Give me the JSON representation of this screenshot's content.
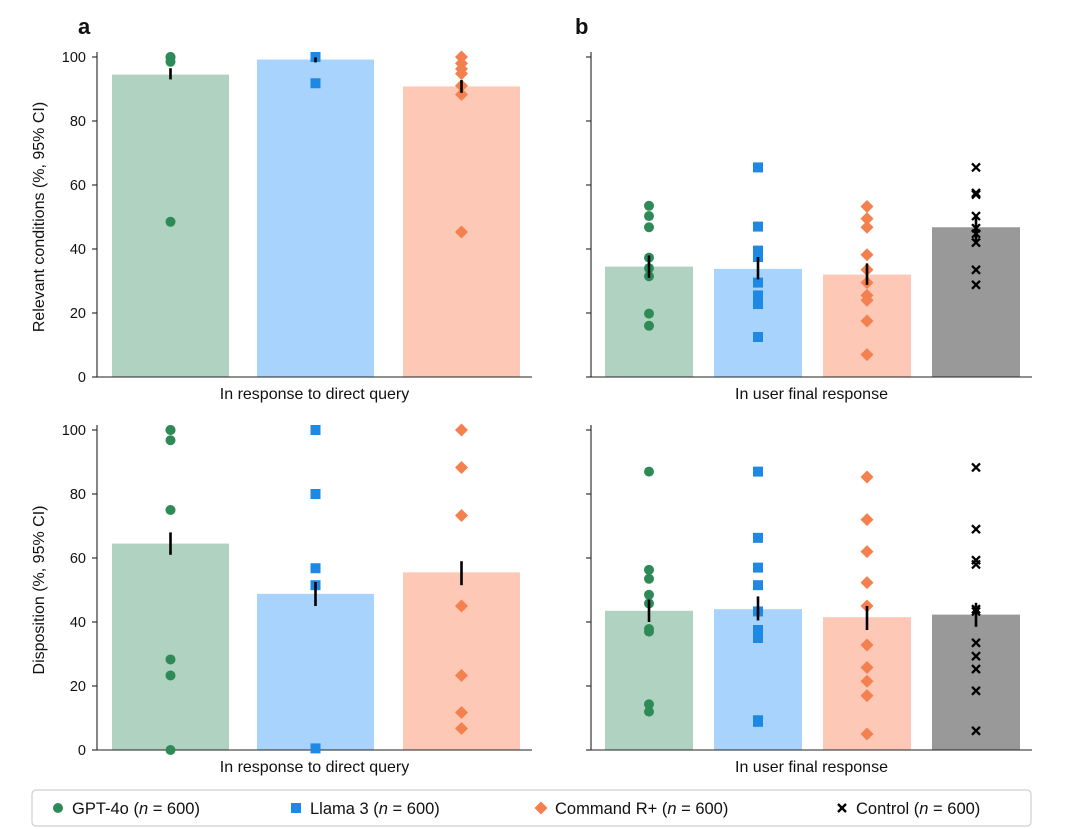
{
  "chart_data": [
    {
      "type": "bar",
      "id": "a-top",
      "panel_letter": "a",
      "xlabel": "In response to direct query",
      "ylabel": "Relevant conditions (%, 95% CI)",
      "ylim": [
        0,
        100
      ],
      "yticks": [
        "0",
        "20",
        "40",
        "60",
        "80",
        "100"
      ],
      "bars": [
        {
          "name": "GPT-4o",
          "value": 94.5,
          "ci": [
            93,
            96.5
          ],
          "points": [
            100,
            100,
            98.5,
            48.5
          ]
        },
        {
          "name": "Llama 3",
          "value": 99.2,
          "ci": [
            98.3,
            99.9
          ],
          "points": [
            100,
            100,
            91.8
          ]
        },
        {
          "name": "Command R+",
          "value": 90.8,
          "ci": [
            88.8,
            92.8
          ],
          "points": [
            100,
            98,
            96.3,
            94.8,
            91,
            88.3,
            45.3
          ]
        }
      ]
    },
    {
      "type": "bar",
      "id": "b-top",
      "panel_letter": "b",
      "xlabel": "In user final response",
      "ylabel": "",
      "ylim": [
        0,
        100
      ],
      "yticks": [
        "0",
        "20",
        "40",
        "60",
        "80",
        "100"
      ],
      "bars": [
        {
          "name": "GPT-4o",
          "value": 34.5,
          "ci": [
            31,
            38
          ],
          "points": [
            53.5,
            50.3,
            46.8,
            37.3,
            34,
            31.5,
            19.8,
            16
          ]
        },
        {
          "name": "Llama 3",
          "value": 33.8,
          "ci": [
            30.5,
            37.5
          ],
          "points": [
            65.5,
            47,
            39.5,
            37.5,
            29.5,
            25.5,
            22.8,
            12.5
          ]
        },
        {
          "name": "Command R+",
          "value": 32,
          "ci": [
            28.8,
            35.5
          ],
          "points": [
            53.3,
            49.5,
            46.8,
            38.2,
            33.5,
            29.5,
            25.5,
            24,
            17.5,
            7
          ]
        },
        {
          "name": "Control",
          "value": 46.8,
          "ci": [
            42.5,
            50.5
          ],
          "points": [
            65.5,
            57.5,
            57,
            50.3,
            46.5,
            44.8,
            42,
            33.5,
            28.8
          ]
        }
      ]
    },
    {
      "type": "bar",
      "id": "a-bottom",
      "panel_letter": "",
      "xlabel": "In response to direct query",
      "ylabel": "Disposition (%, 95% CI)",
      "ylim": [
        0,
        100
      ],
      "yticks": [
        "0",
        "20",
        "40",
        "60",
        "80",
        "100"
      ],
      "bars": [
        {
          "name": "GPT-4o",
          "value": 64.5,
          "ci": [
            61,
            68
          ],
          "points": [
            100,
            100,
            96.8,
            75,
            28.3,
            23.3,
            0
          ]
        },
        {
          "name": "Llama 3",
          "value": 48.8,
          "ci": [
            45,
            52.5
          ],
          "points": [
            100,
            100,
            80,
            56.8,
            51.5,
            0.5
          ]
        },
        {
          "name": "Command R+",
          "value": 55.5,
          "ci": [
            51.5,
            59
          ],
          "points": [
            100,
            88.3,
            73.3,
            45,
            23.3,
            11.7,
            6.7
          ]
        }
      ]
    },
    {
      "type": "bar",
      "id": "b-bottom",
      "panel_letter": "",
      "xlabel": "In user final response",
      "ylabel": "",
      "ylim": [
        0,
        100
      ],
      "yticks": [
        "0",
        "20",
        "40",
        "60",
        "80",
        "100"
      ],
      "bars": [
        {
          "name": "GPT-4o",
          "value": 43.5,
          "ci": [
            40,
            47
          ],
          "points": [
            87,
            56.3,
            53.5,
            48.5,
            45.8,
            37.8,
            37,
            14.3,
            12
          ]
        },
        {
          "name": "Llama 3",
          "value": 44,
          "ci": [
            40.5,
            48
          ],
          "points": [
            87,
            66.3,
            57,
            51.5,
            43.3,
            37.5,
            35,
            9.3,
            8.8
          ]
        },
        {
          "name": "Command R+",
          "value": 41.5,
          "ci": [
            37.5,
            45
          ],
          "points": [
            85.3,
            72,
            62,
            52.3,
            45,
            32.8,
            25.8,
            21.5,
            17,
            5
          ]
        },
        {
          "name": "Control",
          "value": 42.3,
          "ci": [
            38.5,
            46
          ],
          "points": [
            88.3,
            69,
            59.3,
            58,
            44,
            43.3,
            33.5,
            29.3,
            25.3,
            18.5,
            6
          ]
        }
      ]
    }
  ],
  "legend": [
    {
      "name": "GPT-4o",
      "prefix": "GPT-4o (",
      "n_symbol": "n",
      "suffix": " = 600)",
      "marker": "circle",
      "color": "#2e8b57",
      "bar_color": "#afd3c0"
    },
    {
      "name": "Llama 3",
      "prefix": "Llama 3 (",
      "n_symbol": "n",
      "suffix": " = 600)",
      "marker": "square",
      "color": "#1e88e5",
      "bar_color": "#a8d3fc"
    },
    {
      "name": "Command R+",
      "prefix": "Command R+ (",
      "n_symbol": "n",
      "suffix": " = 600)",
      "marker": "diamond",
      "color": "#f4804f",
      "bar_color": "#fdc8b5"
    },
    {
      "name": "Control",
      "prefix": "Control (",
      "n_symbol": "n",
      "suffix": " = 600)",
      "marker": "x",
      "color": "#000000",
      "bar_color": "#999999"
    }
  ]
}
